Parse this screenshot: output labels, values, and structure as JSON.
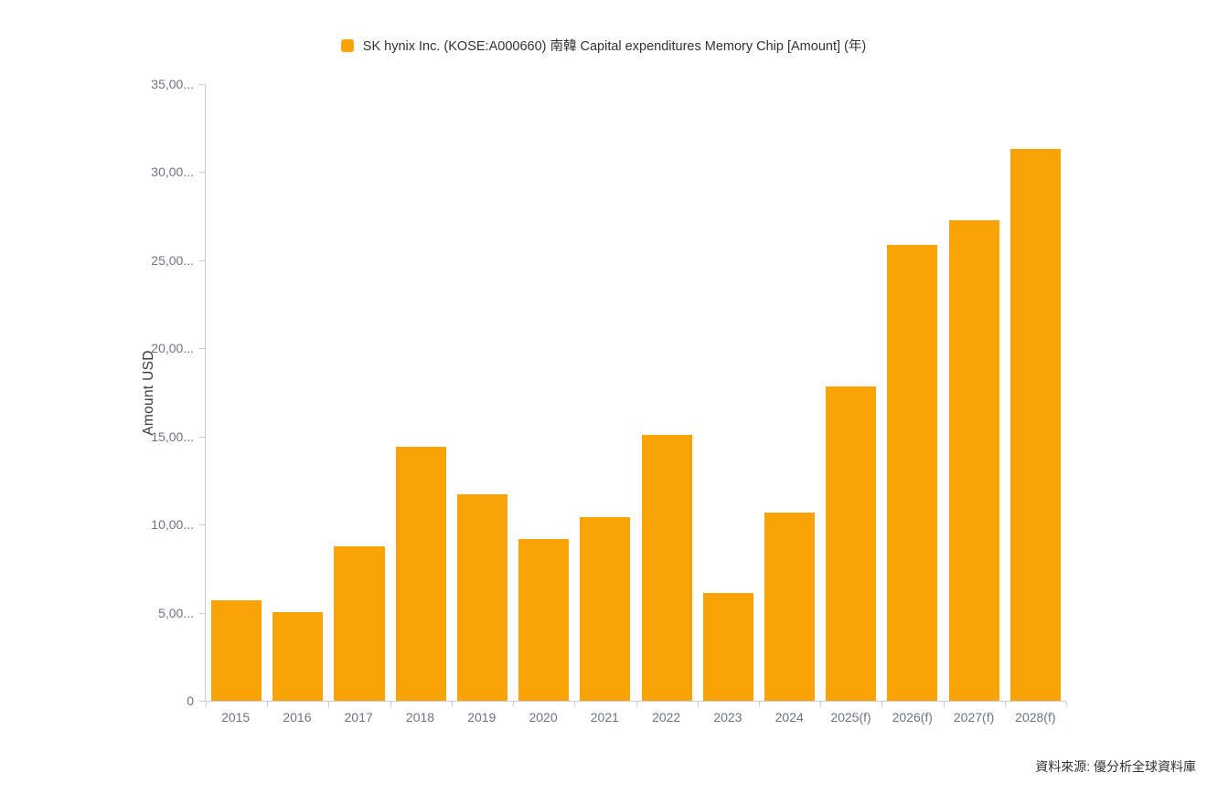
{
  "colors": {
    "bar": "#F9A307",
    "axis_line": "#cccccc",
    "tick_label": "#6B7486",
    "text_dark": "#333333",
    "background": "#ffffff"
  },
  "legend": {
    "label": "SK hynix Inc. (KOSE:A000660) 南韓 Capital expenditures Memory Chip [Amount] (年)"
  },
  "source_note": "資料來源: 優分析全球資料庫",
  "chart_data": {
    "type": "bar",
    "title": "SK hynix Inc. (KOSE:A000660) 南韓 Capital expenditures Memory Chip [Amount] (年)",
    "xlabel": "",
    "ylabel": "Amount USD",
    "ylim": [
      0,
      35000
    ],
    "grid": false,
    "legend_position": "top-center",
    "categories": [
      "2015",
      "2016",
      "2017",
      "2018",
      "2019",
      "2020",
      "2021",
      "2022",
      "2023",
      "2024",
      "2025(f)",
      "2026(f)",
      "2027(f)",
      "2028(f)"
    ],
    "values": [
      5680,
      5030,
      8760,
      14390,
      11700,
      9180,
      10430,
      15100,
      6130,
      10700,
      17830,
      25850,
      27290,
      31330
    ],
    "y_ticks": {
      "values": [
        0,
        5000,
        10000,
        15000,
        20000,
        25000,
        30000,
        35000
      ],
      "labels": [
        "0",
        "5,00...",
        "10,00...",
        "15,00...",
        "20,00...",
        "25,00...",
        "30,00...",
        "35,00..."
      ]
    }
  }
}
